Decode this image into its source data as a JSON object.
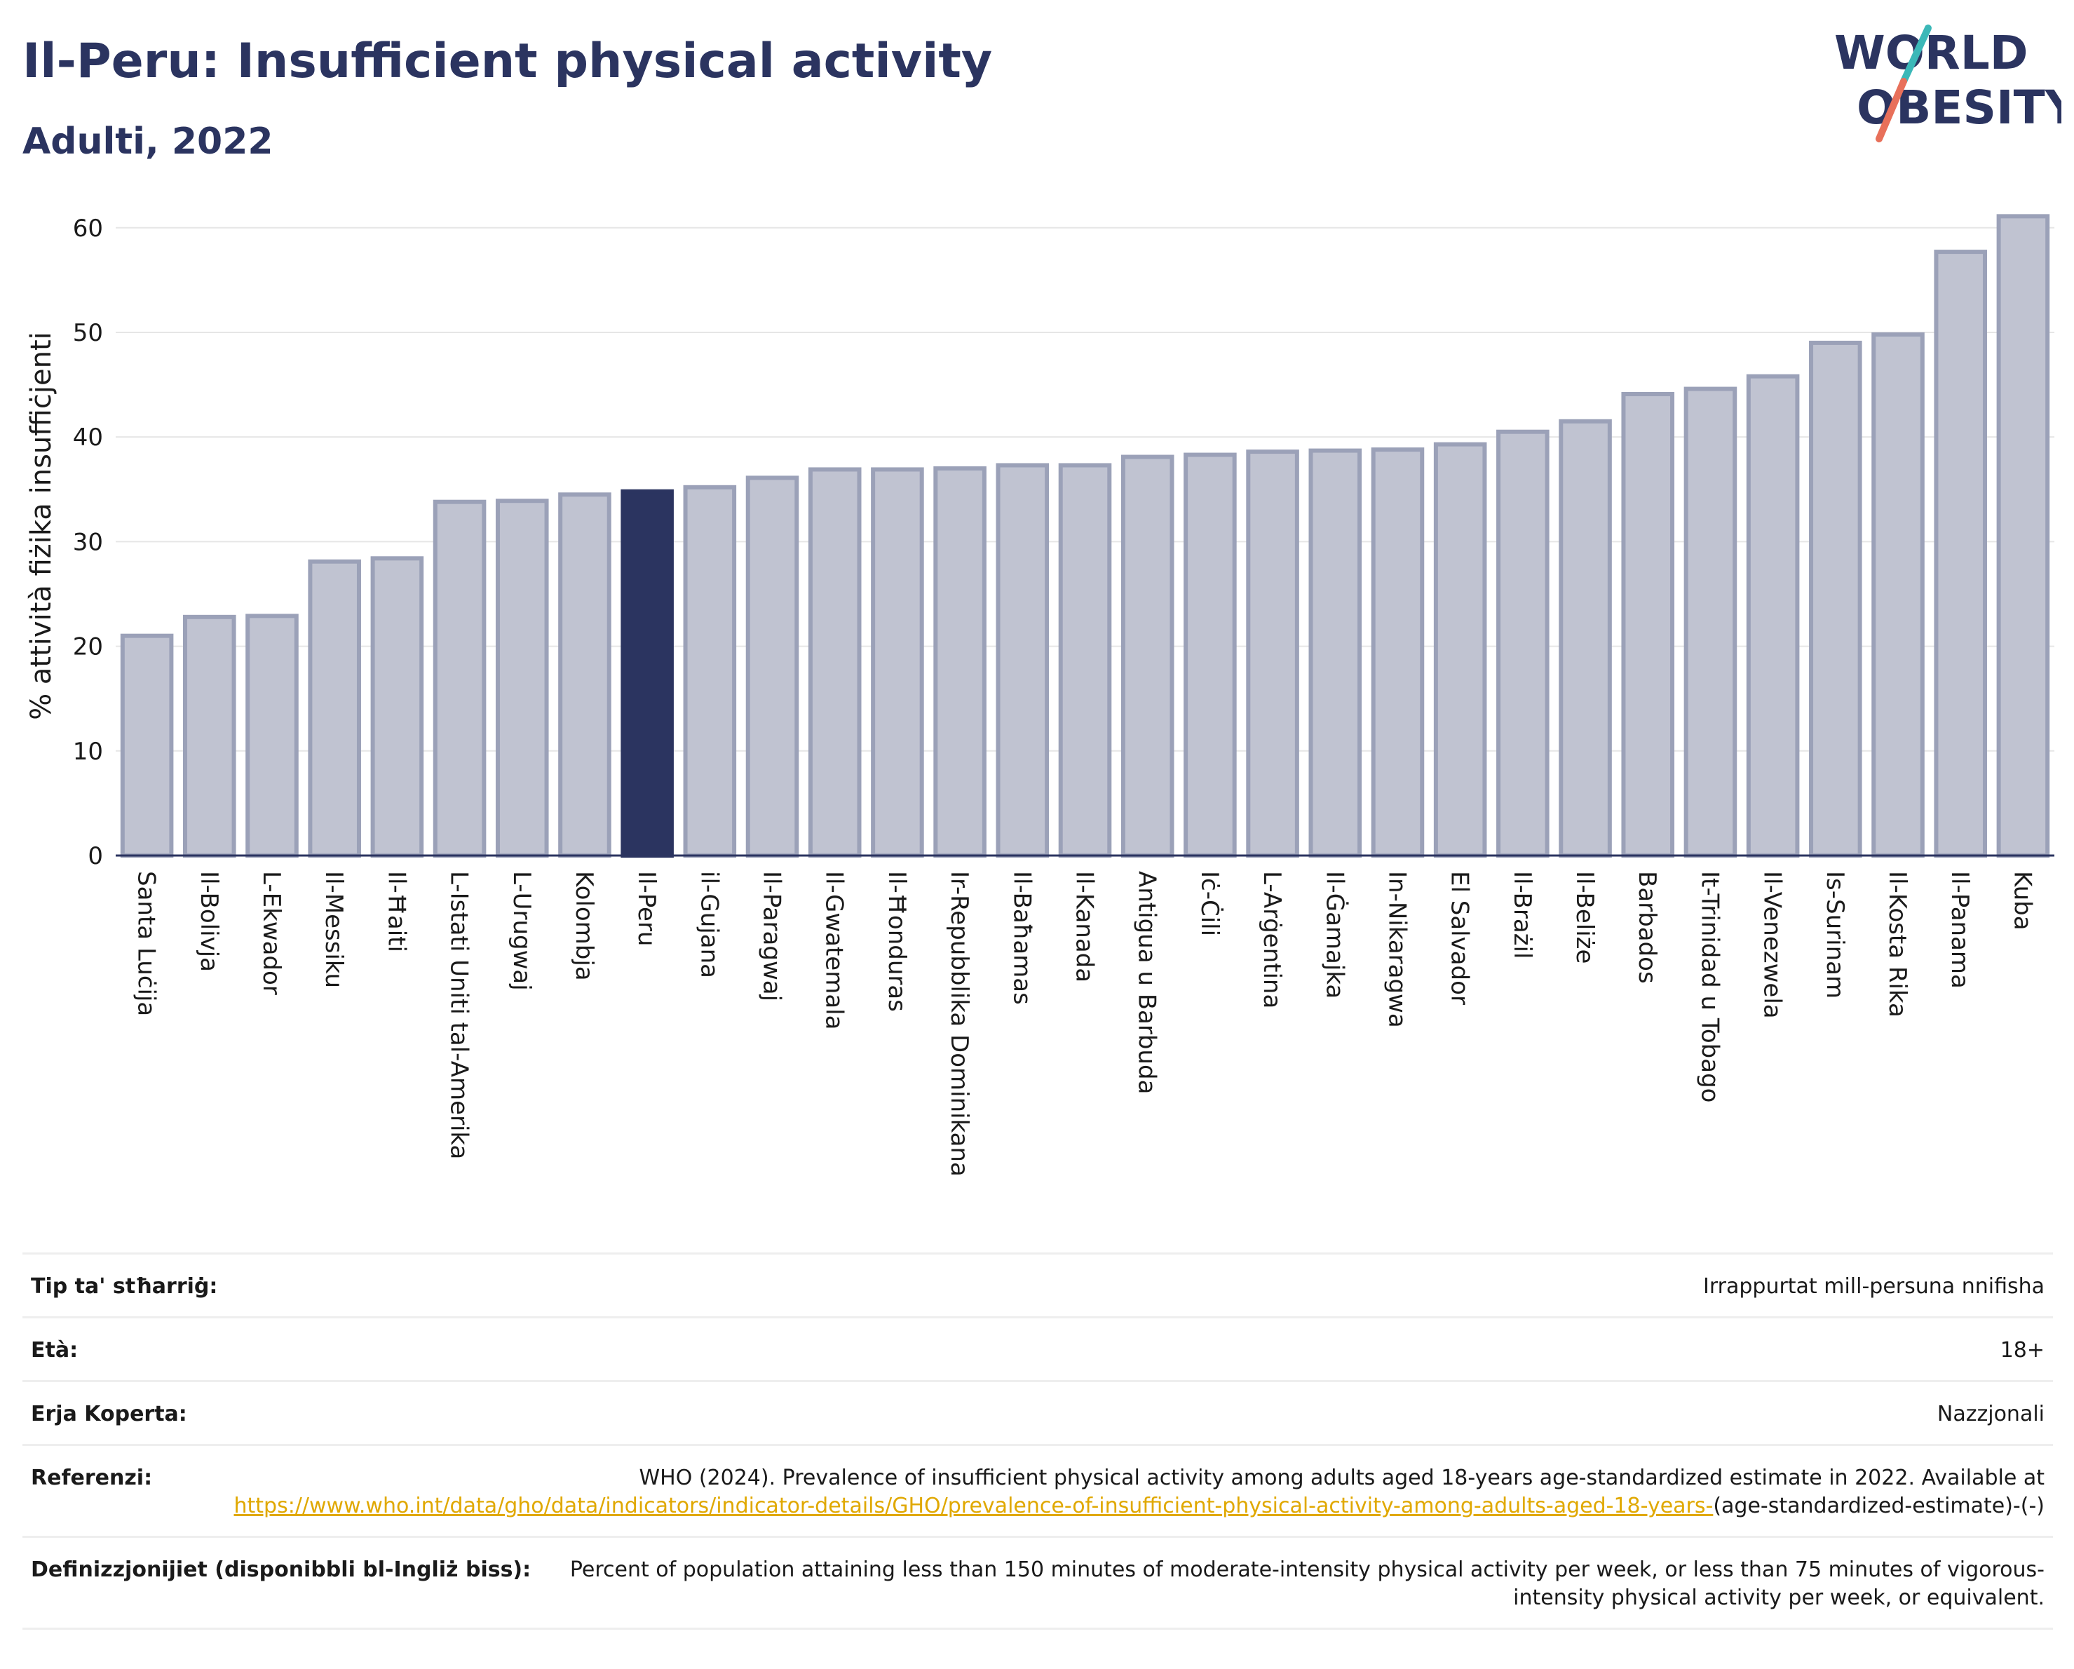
{
  "header": {
    "title": "Il-Peru: Insufficient physical activity",
    "subtitle": "Adulti, 2022"
  },
  "logo": {
    "line1": "WORLD",
    "line2": "OBESITY",
    "colors": {
      "text": "#2b3460",
      "slash_top": "#3bb8b8",
      "slash_bottom": "#e8705a"
    }
  },
  "colors": {
    "bar_fill": "#c0c3d1",
    "bar_stroke": "#9ba1b8",
    "highlight": "#2b3460",
    "link": "#e0a800"
  },
  "chart_data": {
    "type": "bar",
    "title": "Il-Peru: Insufficient physical activity",
    "subtitle": "Adulti, 2022",
    "ylabel": "% attività fiżika insuffiċjenti",
    "xlabel": "",
    "ylim": [
      0,
      63
    ],
    "yticks": [
      0,
      10,
      20,
      30,
      40,
      50,
      60
    ],
    "grid": true,
    "highlight": "Il-Peru",
    "categories": [
      "Santa Luċija",
      "Il-Bolivja",
      "L-Ekwador",
      "Il-Messiku",
      "Il-Ħaiti",
      "L-Istati Uniti tal-Amerika",
      "L-Urugwaj",
      "Kolombja",
      "Il-Peru",
      "il-Gujana",
      "Il-Paragwaj",
      "Il-Gwatemala",
      "Il-Ħonduras",
      "Ir-Repubblika Dominikana",
      "Il-Baħamas",
      "Il-Kanada",
      "Antigua u Barbuda",
      "Iċ-Ċili",
      "L-Arġentina",
      "Il-Ġamajka",
      "In-Nikaragwa",
      "El Salvador",
      "Il-Brażil",
      "Il-Beliże",
      "Barbados",
      "It-Trinidad u Tobago",
      "Il-Venezwela",
      "Is-Surinam",
      "Il-Kosta Rika",
      "Il-Panama",
      "Kuba"
    ],
    "values": [
      21.0,
      22.8,
      22.9,
      28.1,
      28.4,
      33.8,
      33.9,
      34.5,
      34.8,
      35.2,
      36.1,
      36.9,
      36.9,
      37.0,
      37.3,
      37.3,
      38.1,
      38.3,
      38.6,
      38.7,
      38.8,
      39.3,
      40.5,
      41.5,
      44.1,
      44.6,
      45.8,
      49.0,
      49.8,
      57.7,
      61.1
    ]
  },
  "meta": {
    "rows": [
      {
        "key": "Tip ta' stħarriġ:",
        "value": "Irrappurtat mill-persuna nnifisha"
      },
      {
        "key": "Età:",
        "value": "18+"
      },
      {
        "key": "Erja Koperta:",
        "value": "Nazzjonali"
      },
      {
        "key": "Referenzi:",
        "value": "WHO (2024). Prevalence of insufficient physical activity among adults aged 18-years age-standardized estimate in 2022. Available at",
        "link": "https://www.who.int/data/gho/data/indicators/indicator-details/GHO/prevalence-of-insufficient-physical-activity-among-adults-aged-18-years-",
        "suffix": "(age-standardized-estimate)-(-)"
      },
      {
        "key": "Definizzjonijiet (disponibbli bl-Ingliż biss):",
        "value": "Percent of population attaining less than 150 minutes of moderate-intensity physical activity per week, or less than 75 minutes of vigorous-intensity physical activity per week, or equivalent."
      }
    ]
  }
}
